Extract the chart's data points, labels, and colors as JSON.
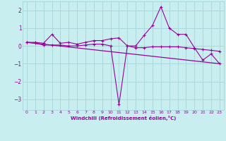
{
  "xlabel": "Windchill (Refroidissement éolien,°C)",
  "bg_color": "#c8eef0",
  "grid_color": "#aad8dc",
  "line_color": "#990099",
  "xlim": [
    -0.5,
    23.5
  ],
  "ylim": [
    -3.6,
    2.5
  ],
  "xticks": [
    0,
    1,
    2,
    3,
    4,
    5,
    6,
    7,
    8,
    9,
    10,
    11,
    12,
    13,
    14,
    15,
    16,
    17,
    18,
    19,
    20,
    21,
    22,
    23
  ],
  "yticks": [
    -3,
    -2,
    -1,
    0,
    1,
    2
  ],
  "series1_x": [
    0,
    1,
    2,
    3,
    4,
    5,
    6,
    7,
    8,
    9,
    10,
    11,
    12,
    13,
    14,
    15,
    16,
    17,
    18,
    19,
    20,
    21,
    22,
    23
  ],
  "series1_y": [
    0.2,
    0.2,
    0.15,
    0.65,
    0.15,
    0.2,
    0.1,
    0.2,
    0.3,
    0.3,
    0.4,
    0.45,
    0.0,
    0.0,
    0.6,
    1.15,
    2.2,
    1.0,
    0.65,
    0.65,
    -0.1,
    -0.8,
    -0.45,
    -1.0
  ],
  "series2_x": [
    0,
    1,
    2,
    3,
    4,
    5,
    6,
    7,
    8,
    9,
    10,
    11,
    12,
    13,
    14,
    15,
    16,
    17,
    18,
    19,
    20,
    21,
    22,
    23
  ],
  "series2_y": [
    0.2,
    0.15,
    0.05,
    0.05,
    0.05,
    0.0,
    0.0,
    0.05,
    0.1,
    0.1,
    0.0,
    -3.3,
    0.0,
    -0.1,
    -0.1,
    -0.05,
    -0.05,
    -0.05,
    -0.05,
    -0.1,
    -0.15,
    -0.2,
    -0.25,
    -0.3
  ],
  "series3_x": [
    0,
    23
  ],
  "series3_y": [
    0.2,
    -1.0
  ]
}
